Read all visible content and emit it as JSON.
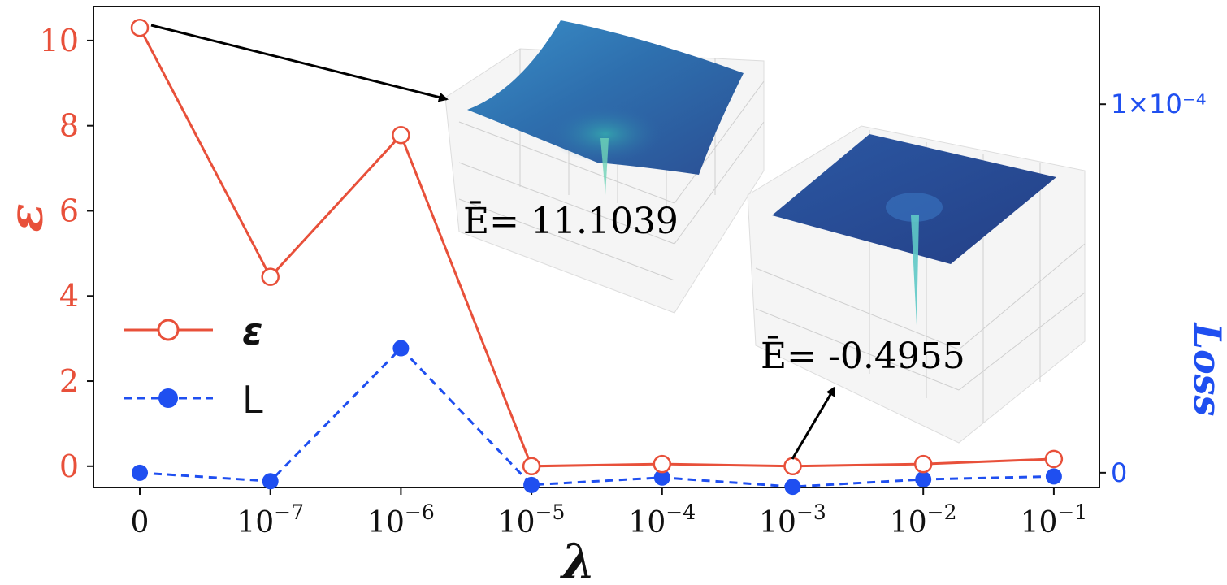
{
  "chart_data": {
    "type": "line",
    "xlabel": "λ",
    "ylabel_left": "ε",
    "ylabel_right": "Loss",
    "categories": [
      "0",
      "10⁻⁷",
      "10⁻⁶",
      "10⁻⁵",
      "10⁻⁴",
      "10⁻³",
      "10⁻²",
      "10⁻¹"
    ],
    "category_ticks": [
      {
        "base": "0",
        "exp": ""
      },
      {
        "base": "10",
        "exp": "−7"
      },
      {
        "base": "10",
        "exp": "−6"
      },
      {
        "base": "10",
        "exp": "−5"
      },
      {
        "base": "10",
        "exp": "−4"
      },
      {
        "base": "10",
        "exp": "−3"
      },
      {
        "base": "10",
        "exp": "−2"
      },
      {
        "base": "10",
        "exp": "−1"
      }
    ],
    "left_axis": {
      "ylim": [
        -0.5,
        10.8
      ],
      "ticks": [
        0,
        2,
        4,
        6,
        8,
        10
      ],
      "color": "#e8503a"
    },
    "right_axis": {
      "ylim": [
        -4e-06,
        0.0001265
      ],
      "ticks": [
        {
          "value": 0,
          "label": "0"
        },
        {
          "value": 0.0001,
          "label": "1×10⁻⁴"
        }
      ],
      "color": "#1f4ff0"
    },
    "series": [
      {
        "name": "ε",
        "axis": "left",
        "style": "solid",
        "marker": "open-circle",
        "color": "#e8503a",
        "values": [
          10.3,
          4.45,
          7.78,
          0.0,
          0.05,
          0.0,
          0.05,
          0.17
        ]
      },
      {
        "name": "L",
        "axis": "right",
        "style": "dashed",
        "marker": "filled-circle",
        "color": "#1f4ff0",
        "values": [
          0.0,
          -2.3e-06,
          3.38e-05,
          -3.3e-06,
          -1.3e-06,
          -3.8e-06,
          -1.8e-06,
          -1e-06
        ]
      }
    ],
    "annotations": [
      {
        "text": "Ē= 11.1039",
        "points_to_category": "0"
      },
      {
        "text": "Ē= -0.4955",
        "points_to_category": "10⁻³"
      }
    ],
    "legend_placement": "center-left",
    "grid": false
  }
}
